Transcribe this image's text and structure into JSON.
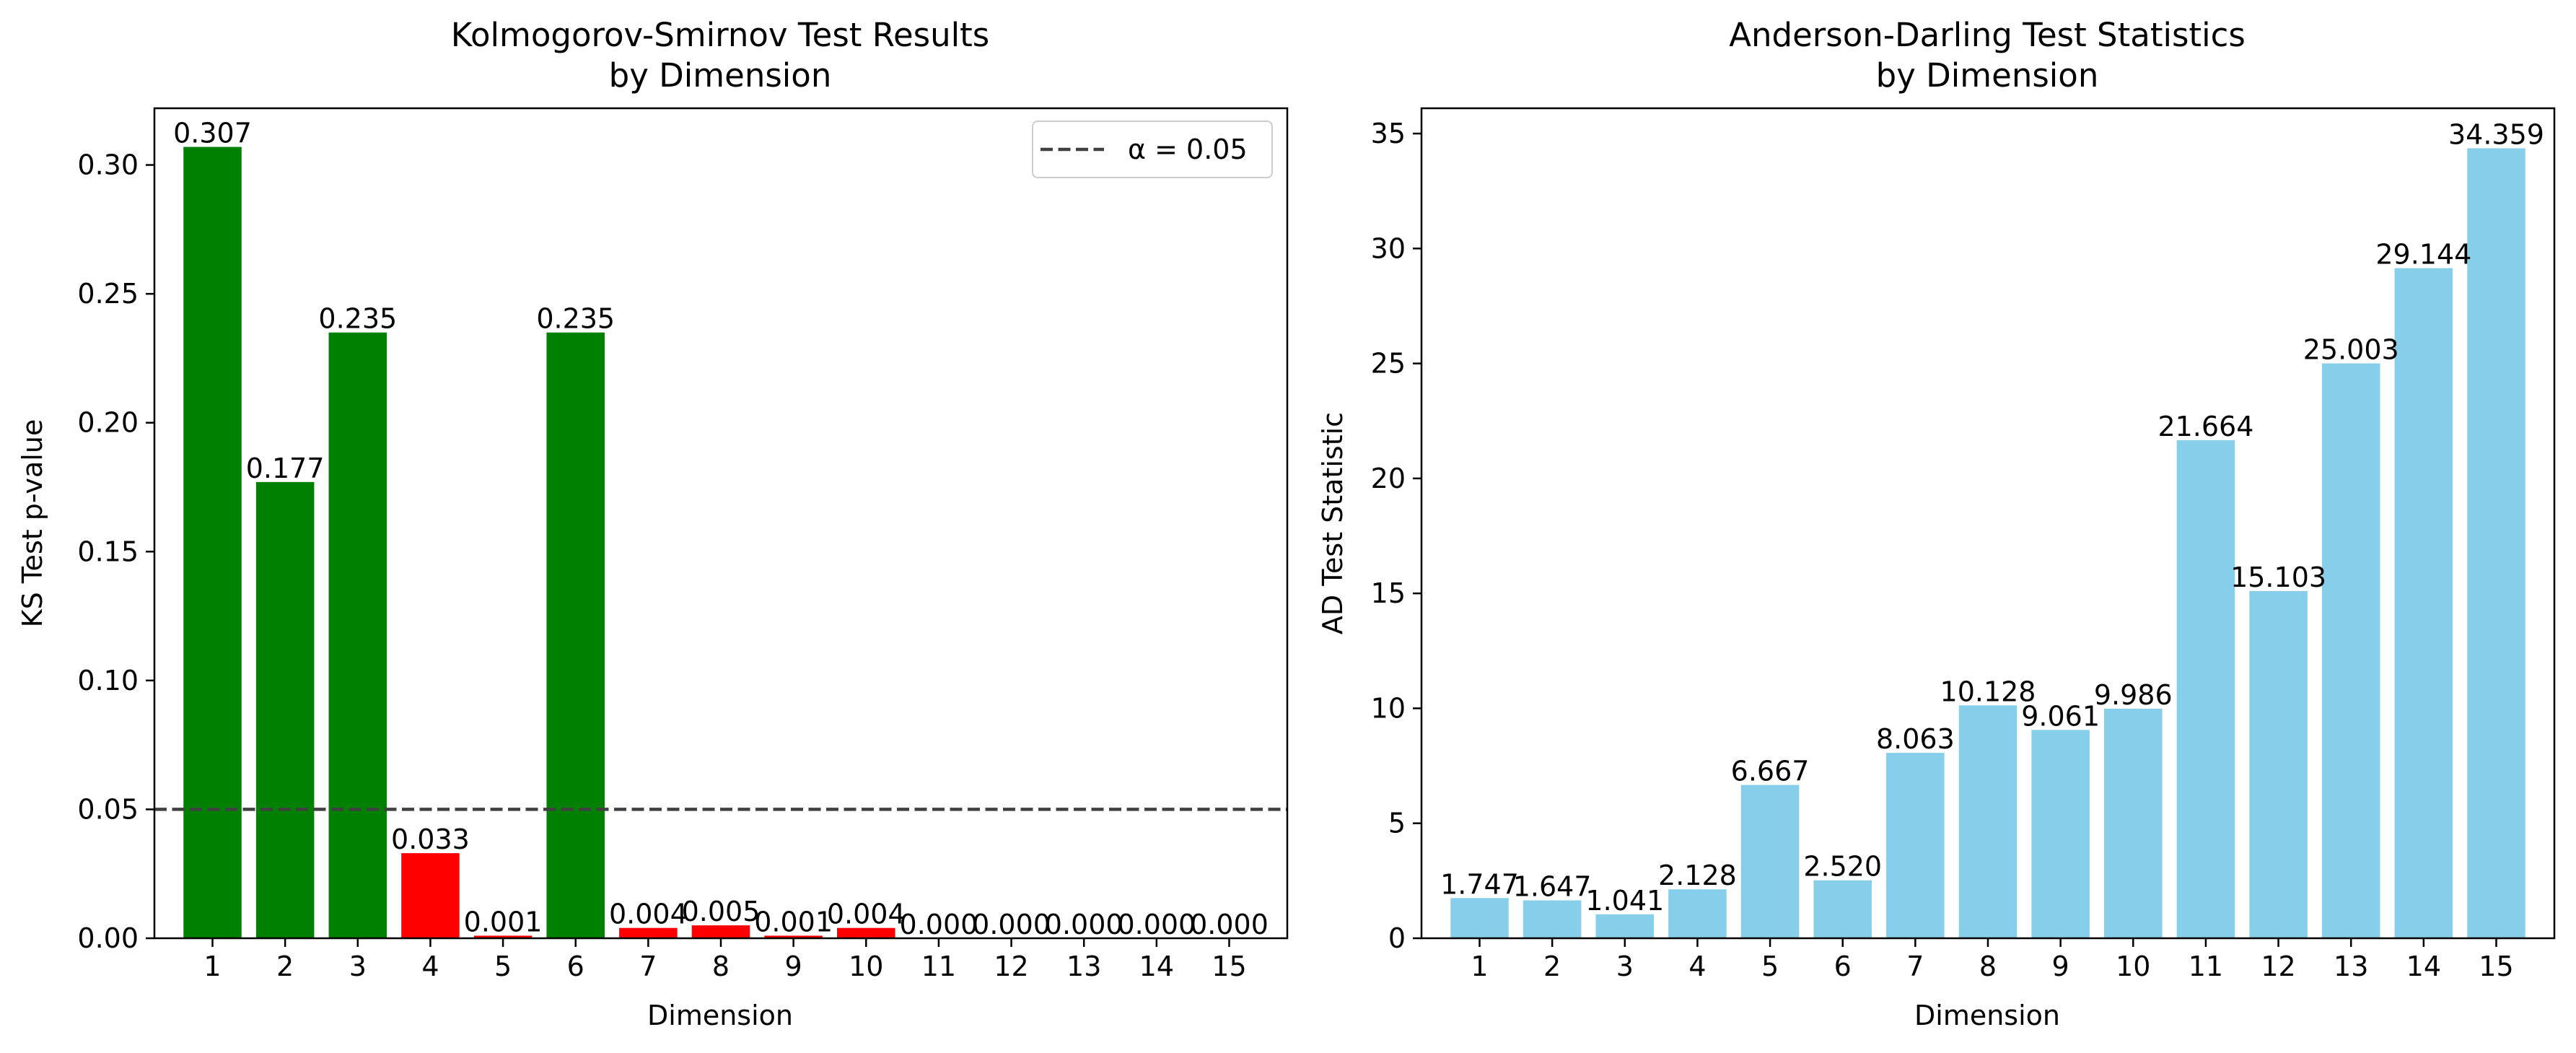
{
  "chart_data": [
    {
      "type": "bar",
      "title": "Kolmogorov-Smirnov Test Results\nby Dimension",
      "xlabel": "Dimension",
      "ylabel": "KS Test p-value",
      "categories": [
        "1",
        "2",
        "3",
        "4",
        "5",
        "6",
        "7",
        "8",
        "9",
        "10",
        "11",
        "12",
        "13",
        "14",
        "15"
      ],
      "values": [
        0.307,
        0.177,
        0.235,
        0.033,
        0.001,
        0.235,
        0.004,
        0.005,
        0.001,
        0.004,
        0.0,
        0.0,
        0.0,
        0.0,
        0.0
      ],
      "value_labels": [
        "0.307",
        "0.177",
        "0.235",
        "0.033",
        "0.001",
        "0.235",
        "0.004",
        "0.005",
        "0.001",
        "0.004",
        "0.000",
        "0.000",
        "0.000",
        "0.000",
        "0.000"
      ],
      "bar_colors": [
        "#008000",
        "#008000",
        "#008000",
        "#ff0000",
        "#ff0000",
        "#008000",
        "#ff0000",
        "#ff0000",
        "#ff0000",
        "#ff0000",
        "#ff0000",
        "#ff0000",
        "#ff0000",
        "#ff0000",
        "#ff0000"
      ],
      "ylim": [
        0,
        0.322
      ],
      "yticks": [
        0.0,
        0.05,
        0.1,
        0.15,
        0.2,
        0.25,
        0.3
      ],
      "ytick_labels": [
        "0.00",
        "0.05",
        "0.10",
        "0.15",
        "0.20",
        "0.25",
        "0.30"
      ],
      "reference_line": {
        "value": 0.05,
        "label": "α = 0.05",
        "color": "#404040",
        "style": "dashed"
      },
      "legend": {
        "placement": "top-right",
        "entries": [
          "α = 0.05"
        ]
      },
      "grid": false
    },
    {
      "type": "bar",
      "title": "Anderson-Darling Test Statistics\nby Dimension",
      "xlabel": "Dimension",
      "ylabel": "AD Test Statistic",
      "categories": [
        "1",
        "2",
        "3",
        "4",
        "5",
        "6",
        "7",
        "8",
        "9",
        "10",
        "11",
        "12",
        "13",
        "14",
        "15"
      ],
      "values": [
        1.747,
        1.647,
        1.041,
        2.128,
        6.667,
        2.52,
        8.063,
        10.128,
        9.061,
        9.986,
        21.664,
        15.103,
        25.003,
        29.144,
        34.359
      ],
      "value_labels": [
        "1.747",
        "1.647",
        "1.041",
        "2.128",
        "6.667",
        "2.520",
        "8.063",
        "10.128",
        "9.061",
        "9.986",
        "21.664",
        "15.103",
        "25.003",
        "29.144",
        "34.359"
      ],
      "bar_color": "#87ceeb",
      "ylim": [
        0,
        36.1
      ],
      "yticks": [
        0,
        5,
        10,
        15,
        20,
        25,
        30,
        35
      ],
      "ytick_labels": [
        "0",
        "5",
        "10",
        "15",
        "20",
        "25",
        "30",
        "35"
      ],
      "grid": false
    }
  ]
}
